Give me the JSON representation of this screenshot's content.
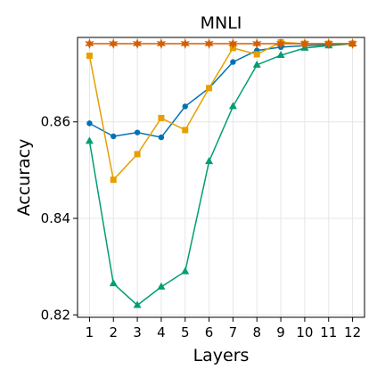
{
  "chart_data": {
    "type": "line",
    "title": "MNLI",
    "xlabel": "Layers",
    "ylabel": "Accuracy",
    "x": [
      1,
      2,
      3,
      4,
      5,
      6,
      7,
      8,
      9,
      10,
      11,
      12
    ],
    "xlim": [
      0.5,
      12.5
    ],
    "ylim": [
      0.8195,
      0.8775
    ],
    "yticks": [
      0.82,
      0.84,
      0.86
    ],
    "ytick_labels": [
      "0.82",
      "0.84",
      "0.86"
    ],
    "grid": true,
    "series": [
      {
        "color": "#0072B2",
        "marker": "circle",
        "values": [
          0.8597,
          0.857,
          0.8578,
          0.8568,
          0.8632,
          0.867,
          0.8724,
          0.8748,
          0.8755,
          0.8758,
          0.876,
          0.8762
        ]
      },
      {
        "color": "#E69F00",
        "marker": "square",
        "values": [
          0.8737,
          0.848,
          0.8533,
          0.8608,
          0.8583,
          0.867,
          0.8753,
          0.874,
          0.8765,
          0.8762,
          0.8762,
          0.8762
        ]
      },
      {
        "color": "#009E73",
        "marker": "triangle",
        "values": [
          0.856,
          0.8265,
          0.822,
          0.8258,
          0.829,
          0.8518,
          0.8632,
          0.8718,
          0.8738,
          0.8753,
          0.8758,
          0.8762
        ]
      },
      {
        "color": "#D55E00",
        "marker": "star",
        "values": [
          0.8762,
          0.8762,
          0.8762,
          0.8762,
          0.8762,
          0.8762,
          0.8762,
          0.8762,
          0.8762,
          0.8762,
          0.8762,
          0.8762
        ]
      }
    ]
  }
}
